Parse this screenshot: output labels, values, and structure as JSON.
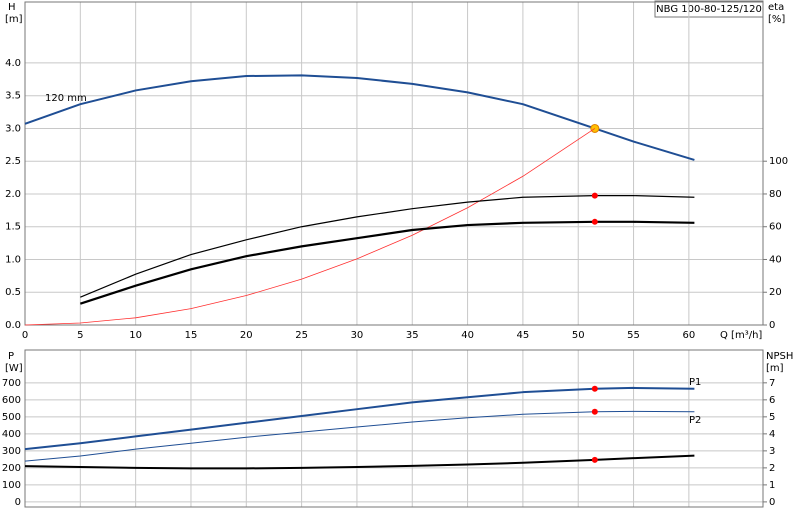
{
  "chart_data": [
    {
      "type": "line",
      "title": "NBG 100-80-125/120",
      "ylabel": "H",
      "yunit": "[m]",
      "y2label": "eta",
      "y2unit": "[%]",
      "xlabel": "Q [m³/h]",
      "x": [
        0,
        5,
        10,
        15,
        20,
        25,
        30,
        35,
        40,
        45,
        51.5,
        55,
        60.5
      ],
      "xlim": [
        0,
        66.7
      ],
      "xticks": [
        0,
        5,
        10,
        15,
        20,
        25,
        30,
        35,
        40,
        45,
        50,
        55,
        60
      ],
      "ylim": [
        0,
        4.93
      ],
      "yticks": [
        {
          "value": 0,
          "label": "0.0"
        },
        {
          "value": 0.5,
          "label": "0.5"
        },
        {
          "value": 1,
          "label": "1.0"
        },
        {
          "value": 1.5,
          "label": "1.5"
        },
        {
          "value": 2,
          "label": "2.0"
        },
        {
          "value": 2.5,
          "label": "2.5"
        },
        {
          "value": 3,
          "label": "3.0"
        },
        {
          "value": 3.5,
          "label": "3.5"
        },
        {
          "value": 4,
          "label": "4.0"
        }
      ],
      "y2lim": [
        0,
        197.2
      ],
      "y2ticks": [
        0,
        20,
        40,
        60,
        80,
        100
      ],
      "grid": true,
      "series": [
        {
          "name": "120 mm",
          "color": "#1f4e94",
          "width": 2,
          "values": [
            3.07,
            3.37,
            3.58,
            3.72,
            3.8,
            3.81,
            3.77,
            3.68,
            3.55,
            3.37,
            3.0,
            2.8,
            2.52
          ],
          "marker_x": 51.5,
          "marker_color": "#ffc000"
        },
        {
          "color": "#ff3030",
          "width": 0.8,
          "values": [
            0,
            0.03,
            0.11,
            0.25,
            0.45,
            0.7,
            1.01,
            1.37,
            1.79,
            2.27,
            3.0,
            null,
            null
          ]
        },
        {
          "color": "#000000",
          "width": 1.2,
          "axis": "y2",
          "values": [
            null,
            17,
            31,
            43,
            52,
            60,
            66,
            71,
            75,
            78,
            79,
            79,
            78
          ],
          "marker_x": 51.5,
          "marker_color": "#ff0000"
        },
        {
          "color": "#000000",
          "width": 2.2,
          "axis": "y2",
          "values": [
            null,
            13,
            24,
            34,
            42,
            48,
            53,
            58,
            61,
            62.4,
            63,
            63,
            62.4
          ],
          "marker_x": 51.5,
          "marker_color": "#ff0000"
        }
      ]
    },
    {
      "type": "line",
      "ylabel": "P",
      "yunit": "[W]",
      "y2label": "NPSH",
      "y2unit": "[m]",
      "x": [
        0,
        5,
        10,
        15,
        20,
        25,
        30,
        35,
        40,
        45,
        51.5,
        55,
        60.5
      ],
      "xlim": [
        0,
        66.7
      ],
      "ylim": [
        -30,
        893
      ],
      "yticks": [
        0,
        100,
        200,
        300,
        400,
        500,
        600,
        700
      ],
      "y2lim": [
        -0.3,
        8.93
      ],
      "y2ticks": [
        0,
        1,
        2,
        3,
        4,
        5,
        6,
        7
      ],
      "grid": true,
      "series": [
        {
          "name": "P1",
          "color": "#1f4e94",
          "width": 2,
          "values": [
            310,
            345,
            385,
            425,
            465,
            505,
            545,
            585,
            615,
            645,
            665,
            670,
            665
          ],
          "marker_x": 51.5,
          "marker_color": "#ff0000"
        },
        {
          "name": "P2",
          "color": "#1f4e94",
          "width": 1,
          "values": [
            240,
            270,
            310,
            345,
            380,
            410,
            440,
            470,
            495,
            515,
            530,
            532,
            530
          ],
          "marker_x": 51.5,
          "marker_color": "#ff0000"
        },
        {
          "color": "#000000",
          "width": 2,
          "axis": "y2",
          "values": [
            2.1,
            2.05,
            2.0,
            1.97,
            1.97,
            2.0,
            2.05,
            2.12,
            2.2,
            2.3,
            2.47,
            2.57,
            2.72
          ],
          "marker_x": 51.5,
          "marker_color": "#ff0000"
        }
      ]
    }
  ]
}
